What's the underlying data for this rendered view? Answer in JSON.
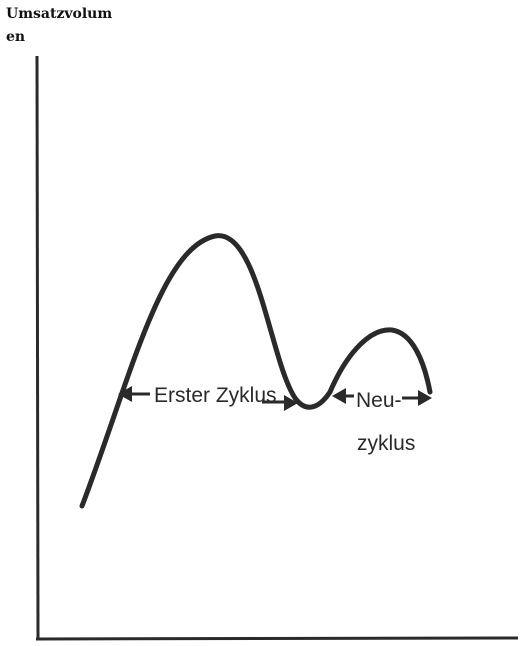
{
  "y_axis_label": "Umsatzvolumen",
  "labels": {
    "first_cycle": "Erster Zyklus",
    "renewal_line1": "Neu-",
    "renewal_line2": "zyklus"
  },
  "colors": {
    "ink": "#2a2a2a",
    "background": "#ffffff"
  }
}
